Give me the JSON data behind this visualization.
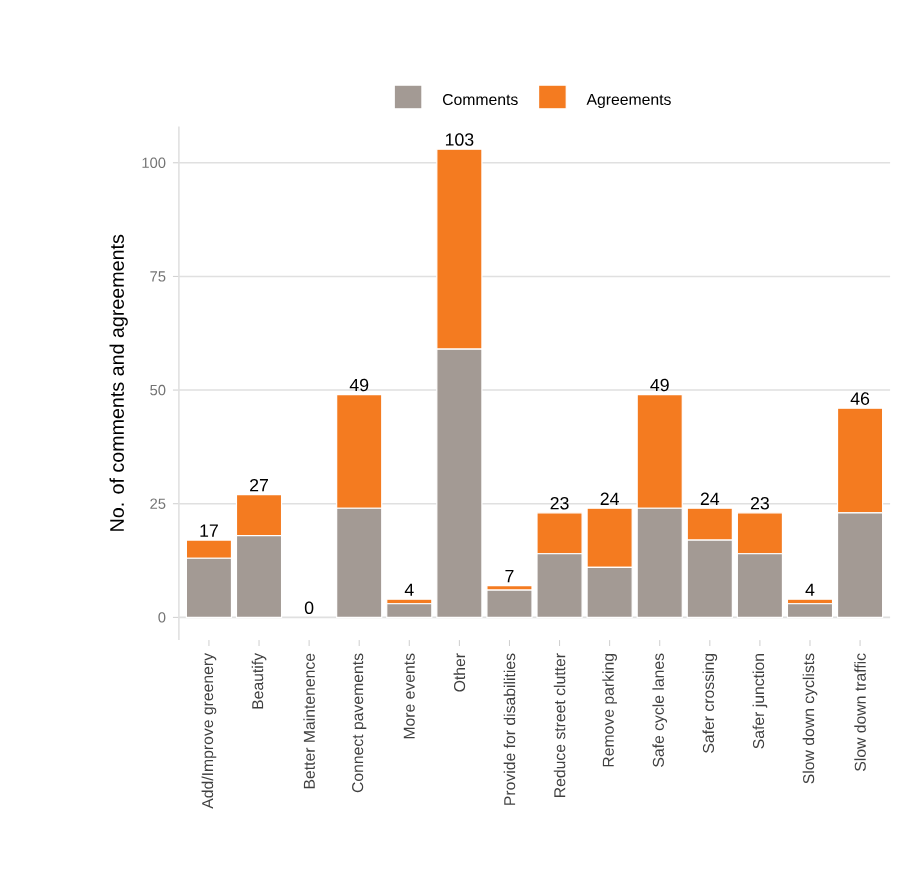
{
  "chart_data": {
    "type": "bar",
    "stacked": true,
    "ylabel": "No. of comments and agreements",
    "categories": [
      "Add/Improve greenery",
      "Beautify",
      "Better Maintenence",
      "Connect pavements",
      "More events",
      "Other",
      "Provide for disabilities",
      "Reduce street clutter",
      "Remove parking",
      "Safe cycle lanes",
      "Safer crossing",
      "Safer junction",
      "Slow down cyclists",
      "Slow down traffic"
    ],
    "series": [
      {
        "name": "Comments",
        "color": "#a39a94",
        "values": [
          13,
          18,
          0,
          24,
          3,
          59,
          6,
          14,
          11,
          24,
          17,
          14,
          3,
          23
        ]
      },
      {
        "name": "Agreements",
        "color": "#f47b20",
        "values": [
          4,
          9,
          0,
          25,
          1,
          44,
          1,
          9,
          13,
          25,
          7,
          9,
          1,
          23
        ]
      }
    ],
    "totals": [
      "17",
      "27",
      "0",
      "49",
      "4",
      "103",
      "7",
      "23",
      "24",
      "49",
      "24",
      "23",
      "4",
      "46"
    ],
    "ylim": [
      -5,
      108
    ],
    "yticks": [
      0,
      25,
      50,
      75,
      100
    ],
    "grid": "y",
    "legend": "top"
  }
}
